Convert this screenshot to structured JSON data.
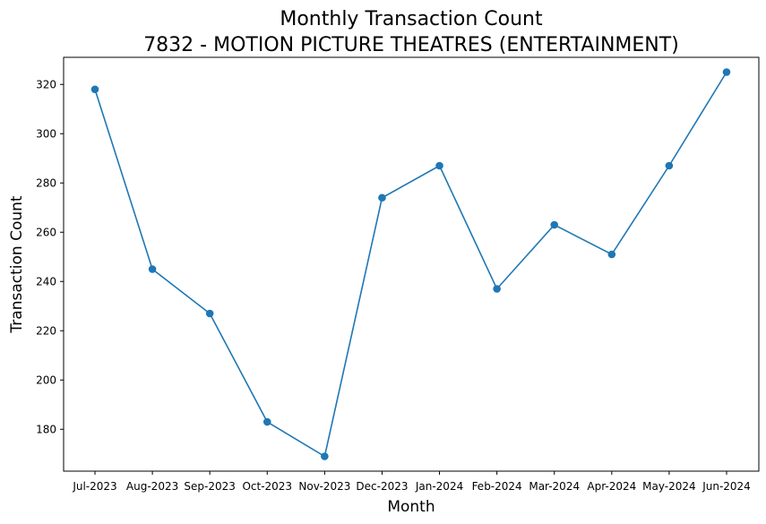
{
  "chart_data": {
    "type": "line",
    "title_line1": "Monthly Transaction Count",
    "title_line2": "7832 - MOTION PICTURE THEATRES (ENTERTAINMENT)",
    "xlabel": "Month",
    "ylabel": "Transaction Count",
    "categories": [
      "Jul-2023",
      "Aug-2023",
      "Sep-2023",
      "Oct-2023",
      "Nov-2023",
      "Dec-2023",
      "Jan-2024",
      "Feb-2024",
      "Mar-2024",
      "Apr-2024",
      "May-2024",
      "Jun-2024"
    ],
    "series": [
      {
        "values": [
          318,
          245,
          227,
          183,
          169,
          274,
          287,
          237,
          263,
          251,
          287,
          325
        ]
      }
    ],
    "yticks": [
      180,
      200,
      220,
      240,
      260,
      280,
      300,
      320
    ],
    "ylim": [
      163,
      331
    ],
    "grid": false,
    "legend": "none",
    "colors": {
      "line": "#1f77b4",
      "marker": "#1f77b4"
    }
  }
}
